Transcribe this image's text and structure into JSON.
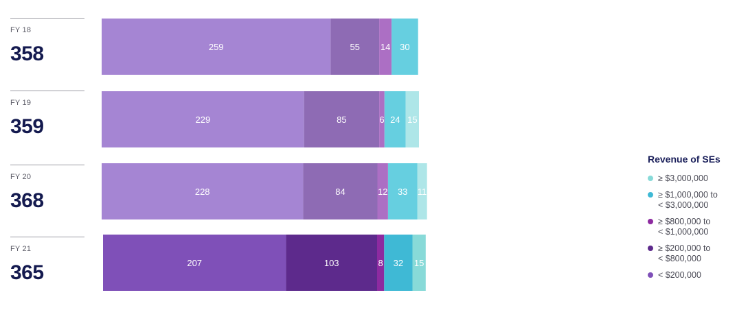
{
  "chart_data": {
    "type": "bar",
    "orientation": "horizontal",
    "stacked": true,
    "rows": [
      {
        "label": "FY 18",
        "total": "358",
        "values": [
          259,
          55,
          14,
          30,
          null
        ]
      },
      {
        "label": "FY 19",
        "total": "359",
        "values": [
          229,
          85,
          6,
          24,
          15
        ]
      },
      {
        "label": "FY 20",
        "total": "368",
        "values": [
          228,
          84,
          12,
          33,
          11
        ]
      },
      {
        "label": "FY 21",
        "total": "365",
        "values": [
          207,
          103,
          8,
          32,
          15
        ]
      }
    ],
    "segment_colors_light": [
      "#a585d3",
      "#8e6bb4",
      "#ac6fc4",
      "#66cfe0",
      "#aee6e8"
    ],
    "segment_colors_dark": [
      "#7f50b8",
      "#5d2a8c",
      "#8d2aa0",
      "#3fb9d5",
      "#88dad8"
    ],
    "dark_row_index": 3,
    "legend": {
      "title": "Revenue of SEs",
      "position": "right",
      "items": [
        {
          "lines": [
            "≥  $3,000,000"
          ],
          "color": "#88dad8"
        },
        {
          "lines": [
            "≥  $1,000,000 to",
            "<  $3,000,000"
          ],
          "color": "#3fb9d5"
        },
        {
          "lines": [
            "≥  $800,000 to",
            "<  $1,000,000"
          ],
          "color": "#8d2aa0"
        },
        {
          "lines": [
            "≥  $200,000 to",
            "<  $800,000"
          ],
          "color": "#5d2a8c"
        },
        {
          "lines": [
            "<  $200,000"
          ],
          "color": "#7f50b8"
        }
      ]
    }
  }
}
